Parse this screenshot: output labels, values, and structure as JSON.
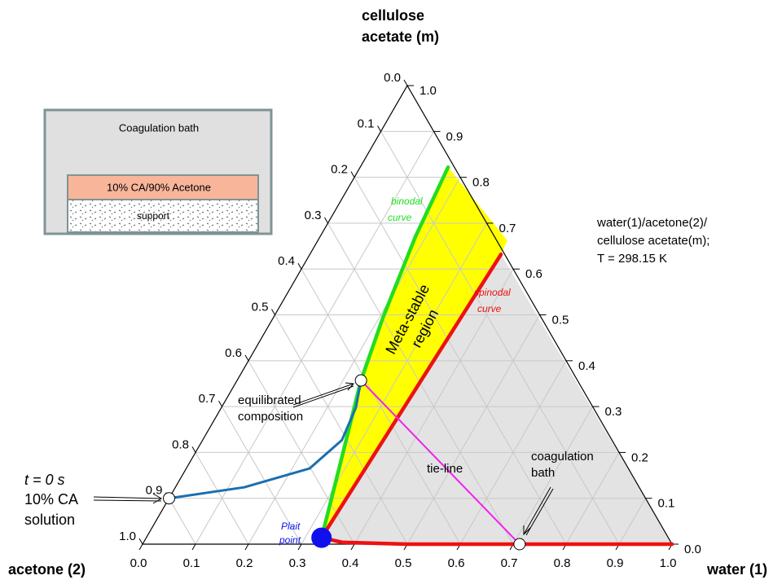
{
  "chart_data": {
    "type": "ternary",
    "top_label": [
      "cellulose",
      "acetate (m)"
    ],
    "left_label": "acetone (2)",
    "right_label": "water (1)",
    "ticks": [
      {
        "value": 0,
        "label": "0.0"
      },
      0.1,
      0.2,
      0.3,
      0.4,
      0.5,
      0.6,
      0.7,
      0.8,
      0.9,
      {
        "value": 1,
        "label": "1.0"
      }
    ],
    "grid": true,
    "series": [
      {
        "color": "#22dd22",
        "w": [
          0.331,
          0.321,
          0.281,
          0.234,
          0.207,
          0.18,
          0.166
        ],
        "m": [
          0.014,
          0.05,
          0.192,
          0.357,
          0.494,
          0.671,
          0.822
        ]
      },
      {
        "color": "#ee1111",
        "w": [
          0.361,
          0.331,
          0.375,
          0.5,
          1.0
        ],
        "m": [
          0.632,
          0.014,
          0.004,
          0,
          0
        ]
      },
      {
        "color": "#1a6fb0",
        "w": [
          0.0,
          0.13,
          0.233,
          0.263,
          0.254,
          0.234
        ],
        "m": [
          0.1,
          0.124,
          0.165,
          0.227,
          0.298,
          0.357
        ]
      },
      {
        "color": "#ee22ee",
        "w": [
          0.234,
          0.712
        ],
        "m": [
          0.357,
          0
        ]
      }
    ],
    "points": {
      "w": [
        0.0,
        0.234,
        0.712,
        0.331
      ],
      "m": [
        0.1,
        0.357,
        0,
        0.014
      ],
      "fill": [
        "#ffffff",
        "#ffffff",
        "#ffffff",
        "#1010ee"
      ]
    },
    "region_colors": {
      "metastable": "#ffff00",
      "unstable": "#e3e3e3"
    },
    "annotations": {
      "system": [
        "water(1)/acetone(2)/",
        "cellulose acetate(m);",
        "T = 298.15 K"
      ],
      "binodal": [
        "binodal",
        "curve"
      ],
      "spinodal": [
        "spinodal",
        "curve"
      ],
      "region": [
        "Meta-stable",
        "region"
      ],
      "equilibrated": [
        "equilibrated",
        "composition"
      ],
      "start": [
        "t = 0 s",
        "10% CA",
        "solution"
      ],
      "tie_line": "tie-line",
      "bath": [
        "coagulation",
        "bath"
      ],
      "plait": [
        "Plait",
        "point"
      ]
    }
  },
  "inset": {
    "bath": "Coagulation bath",
    "solution": "10% CA/90% Acetone",
    "support": "support"
  }
}
